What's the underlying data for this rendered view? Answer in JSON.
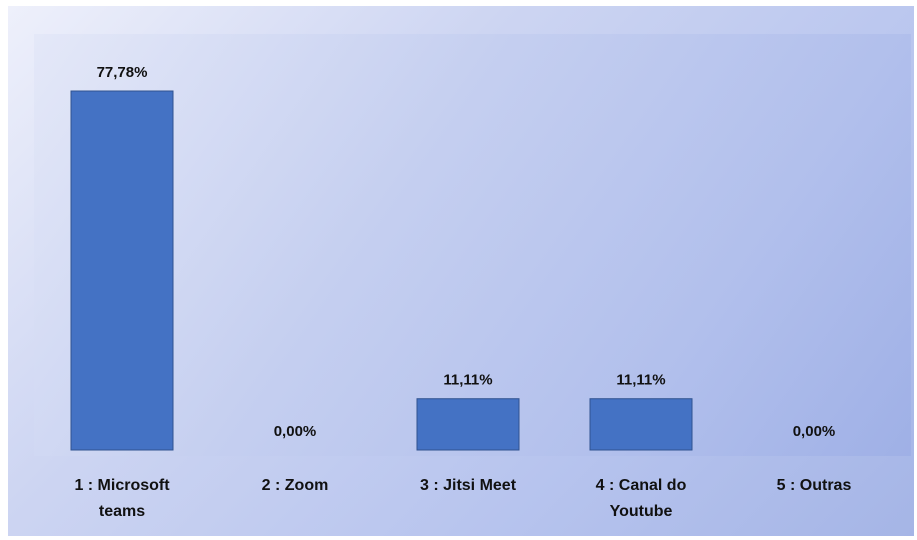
{
  "chart_data": {
    "type": "bar",
    "categories": [
      [
        "1 : Microsoft",
        "teams"
      ],
      [
        "2 : Zoom"
      ],
      [
        "3 : Jitsi Meet"
      ],
      [
        "4 : Canal do",
        "Youtube"
      ],
      [
        "5 : Outras"
      ]
    ],
    "values": [
      77.78,
      0.0,
      11.11,
      11.11,
      0.0
    ],
    "data_labels": [
      "77,78%",
      "0,00%",
      "11,11%",
      "11,11%",
      "0,00%"
    ],
    "ylim": [
      0,
      80
    ],
    "grid": false,
    "legend": "none",
    "colors": {
      "bar": "#4472c4",
      "bar_edge": "#2f528f"
    }
  }
}
